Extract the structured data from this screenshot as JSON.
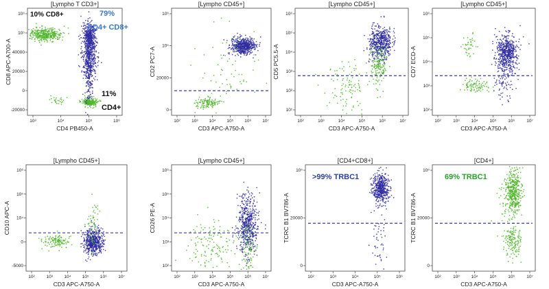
{
  "colors": {
    "cd4_cd8": "#2e2aa0",
    "cd4": "#4fb52a",
    "text": "#222222",
    "threshold": "#3a3aa0"
  },
  "chart_data": [
    {
      "type": "scatter",
      "title": "[Lympho T CD3+]",
      "xlabel": "CD4 PB450-A",
      "ylabel": "CD8 APC-A700-A",
      "xticks": [
        "10³",
        "10⁴",
        "10⁵",
        "10⁶"
      ],
      "yticks": [
        "10⁶",
        "10⁵",
        "40000",
        "20000",
        "0",
        "-20000"
      ],
      "annotations": [
        {
          "text": "10% CD8+",
          "color": "#111111"
        },
        {
          "text": "79%",
          "color": "#3b78c7"
        },
        {
          "text": "CD4+ CD8+",
          "color": "#3b78c7"
        },
        {
          "text": "11%",
          "color": "#111111"
        },
        {
          "text": "CD4+",
          "color": "#111111"
        }
      ]
    },
    {
      "type": "scatter",
      "title": "[Lympho CD45+]",
      "xlabel": "CD3 APC-A750-A",
      "ylabel": "CD2 PC7-A",
      "xticks": [
        "10²",
        "10³",
        "10⁴",
        "10⁵",
        "10⁶",
        "10⁷"
      ],
      "yticks": [
        "10⁶",
        "10⁵",
        "20000",
        "0"
      ],
      "annotations": []
    },
    {
      "type": "scatter",
      "title": "[Lympho CD45+]",
      "xlabel": "CD3 APC-A750-A",
      "ylabel": "CD5 PC5.5-A",
      "xticks": [
        "10²",
        "10³",
        "10⁴",
        "10⁵",
        "10⁶",
        "10⁷"
      ],
      "yticks": [
        "10⁶",
        "10⁵",
        "10⁴",
        "10³",
        "10²",
        "10¹"
      ],
      "annotations": []
    },
    {
      "type": "scatter",
      "title": "[Lympho CD45+]",
      "xlabel": "CD3 APC-A750-A",
      "ylabel": "CD7 ECD-A",
      "xticks": [
        "10²",
        "10³",
        "10⁴",
        "10⁵",
        "10⁶",
        "10⁷"
      ],
      "yticks": [
        "10⁶",
        "10⁵",
        "10⁴",
        "10³",
        "10²"
      ],
      "annotations": []
    },
    {
      "type": "scatter",
      "title": "[Lympho CD45+]",
      "xlabel": "CD3 APC-A750-A",
      "ylabel": "CD10 APC-A",
      "xticks": [
        "10²",
        "10³",
        "10⁴",
        "10⁵",
        "10⁶",
        "10⁷"
      ],
      "yticks": [
        "10⁶",
        "10⁵",
        "10⁴",
        "0",
        "-5000"
      ],
      "annotations": []
    },
    {
      "type": "scatter",
      "title": "[Lympho CD45+]",
      "xlabel": "CD3 APC-A750-A",
      "ylabel": "CD26 PE-A",
      "xticks": [
        "10²",
        "10³",
        "10⁴",
        "10⁵",
        "10⁶",
        "10⁷"
      ],
      "yticks": [
        "10⁶",
        "10⁵",
        "10⁴",
        "10³",
        "10²"
      ],
      "annotations": []
    },
    {
      "type": "scatter",
      "title": "[CD4+CD8+]",
      "xlabel": "CD3 APC-A750-A",
      "ylabel": "TCRC B1 BV786-A",
      "xticks": [
        "10²",
        "10³",
        "10⁴",
        "10⁵",
        "10⁶"
      ],
      "yticks": [
        "10⁵",
        "20000",
        "0"
      ],
      "annotations": [
        {
          "text": ">99% TRBC1",
          "color": "#2e3f9e"
        }
      ]
    },
    {
      "type": "scatter",
      "title": "[CD4+]",
      "xlabel": "CD3 APC-A750-A",
      "ylabel": "TCRC B1 BV786-A",
      "xticks": [
        "10²",
        "10³",
        "10⁴",
        "10⁵",
        "10⁶",
        "10⁷"
      ],
      "yticks": [
        "10⁵",
        "20000",
        "0"
      ],
      "annotations": [
        {
          "text": "69% TRBC1",
          "color": "#2aa02a"
        }
      ]
    }
  ]
}
